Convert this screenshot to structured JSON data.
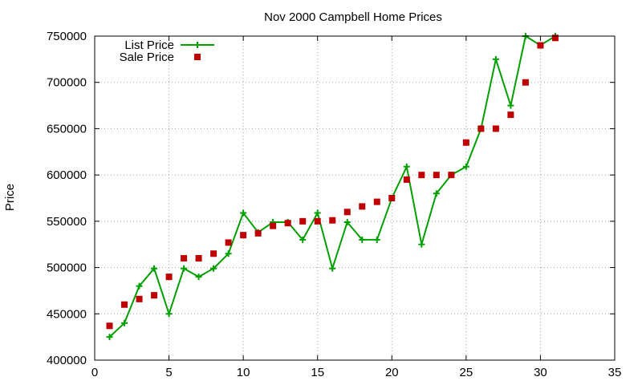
{
  "chart_data": {
    "type": "line",
    "title": "Nov 2000 Campbell Home Prices",
    "xlabel": "",
    "ylabel": "Price",
    "xlim": [
      0,
      35
    ],
    "ylim": [
      400000,
      750000
    ],
    "x_ticks": [
      0,
      5,
      10,
      15,
      20,
      25,
      30,
      35
    ],
    "y_ticks": [
      400000,
      450000,
      500000,
      550000,
      600000,
      650000,
      700000,
      750000
    ],
    "grid": true,
    "legend_position": "top-left",
    "series": [
      {
        "name": "List Price",
        "style": "line-plus",
        "color": "#00a000",
        "x": [
          1,
          2,
          3,
          4,
          5,
          6,
          7,
          8,
          9,
          10,
          11,
          12,
          13,
          14,
          15,
          16,
          17,
          18,
          19,
          20,
          21,
          22,
          23,
          24,
          25,
          26,
          27,
          28,
          29,
          30,
          31
        ],
        "y": [
          425000,
          440000,
          480000,
          499000,
          450000,
          499000,
          490000,
          499000,
          515000,
          559000,
          538000,
          549000,
          549000,
          530000,
          559000,
          499000,
          549000,
          530000,
          530000,
          575000,
          609000,
          525000,
          580000,
          600000,
          609000,
          650000,
          725000,
          675000,
          750000,
          740000,
          750000
        ]
      },
      {
        "name": "Sale Price",
        "style": "square",
        "color": "#c00000",
        "x": [
          1,
          2,
          3,
          4,
          5,
          6,
          7,
          8,
          9,
          10,
          11,
          12,
          13,
          14,
          15,
          16,
          17,
          18,
          19,
          20,
          21,
          22,
          23,
          24,
          25,
          26,
          27,
          28,
          29,
          30,
          31
        ],
        "y": [
          437000,
          460000,
          466000,
          470000,
          490000,
          510000,
          510000,
          515000,
          527000,
          535000,
          537000,
          545000,
          548000,
          550000,
          550000,
          551000,
          560000,
          566000,
          571000,
          575000,
          595000,
          600000,
          600000,
          600000,
          635000,
          650000,
          650000,
          665000,
          700000,
          740000,
          748000
        ]
      }
    ]
  }
}
